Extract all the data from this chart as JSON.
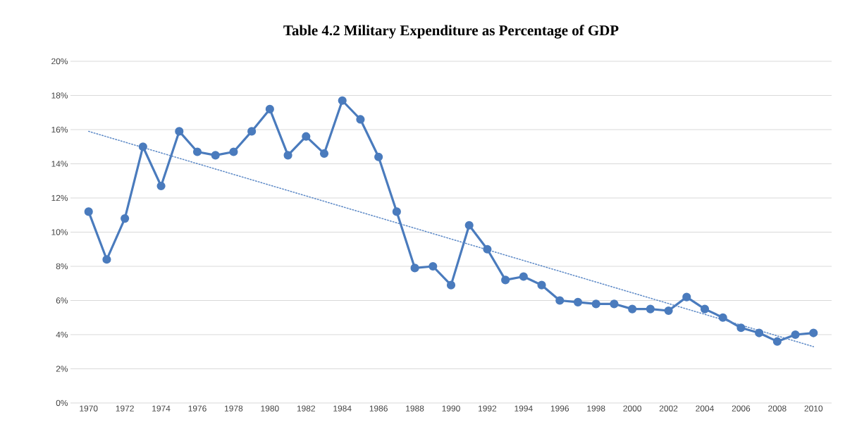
{
  "chart_data": {
    "type": "line",
    "title": "Table 4.2   Military Expenditure as Percentage of GDP",
    "x": [
      1970,
      1971,
      1972,
      1973,
      1974,
      1975,
      1976,
      1977,
      1978,
      1979,
      1980,
      1981,
      1982,
      1983,
      1984,
      1985,
      1986,
      1987,
      1988,
      1989,
      1990,
      1991,
      1992,
      1993,
      1994,
      1995,
      1996,
      1997,
      1998,
      1999,
      2000,
      2001,
      2002,
      2003,
      2004,
      2005,
      2006,
      2007,
      2008,
      2009,
      2010
    ],
    "series": [
      {
        "color": "#4a7bbd",
        "marker": "circle",
        "line_style": "solid",
        "values": [
          11.2,
          8.4,
          10.8,
          15.0,
          12.7,
          15.9,
          14.7,
          14.5,
          14.7,
          15.9,
          17.2,
          14.5,
          15.6,
          14.6,
          17.7,
          16.6,
          14.4,
          11.2,
          7.9,
          8.0,
          6.9,
          10.4,
          9.0,
          7.2,
          7.4,
          6.9,
          6.0,
          5.9,
          5.8,
          5.8,
          5.5,
          5.5,
          5.4,
          6.2,
          5.5,
          5.0,
          4.4,
          4.1,
          3.6,
          4.0,
          4.1
        ]
      },
      {
        "type": "line",
        "color": "#5b88c6",
        "marker": "none",
        "line_style": "dotted",
        "x": [
          1970,
          2010
        ],
        "values": [
          15.9,
          3.3
        ]
      }
    ],
    "xlim": [
      1969,
      2011
    ],
    "xticks": [
      1970,
      1972,
      1974,
      1976,
      1978,
      1980,
      1982,
      1984,
      1986,
      1988,
      1990,
      1992,
      1994,
      1996,
      1998,
      2000,
      2002,
      2004,
      2006,
      2008,
      2010
    ],
    "ylim": [
      0,
      20
    ],
    "yticks": [
      {
        "value": 0,
        "label": "0%"
      },
      {
        "value": 2,
        "label": "2%"
      },
      {
        "value": 4,
        "label": "4%"
      },
      {
        "value": 6,
        "label": "6%"
      },
      {
        "value": 8,
        "label": "8%"
      },
      {
        "value": 10,
        "label": "10%"
      },
      {
        "value": 12,
        "label": "12%"
      },
      {
        "value": 14,
        "label": "14%"
      },
      {
        "value": 16,
        "label": "16%"
      },
      {
        "value": 18,
        "label": "18%"
      },
      {
        "value": 20,
        "label": "20%"
      }
    ],
    "grid": "y"
  }
}
